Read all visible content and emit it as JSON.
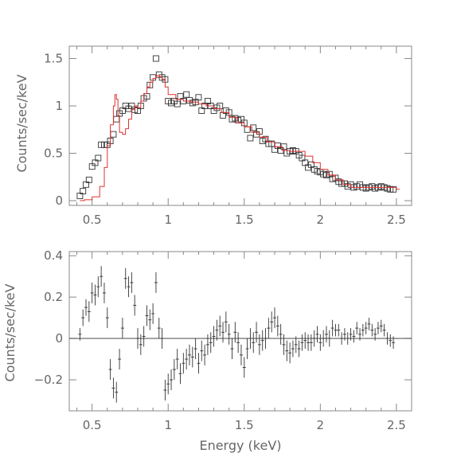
{
  "chart_data": [
    {
      "type": "scatter",
      "panel": "top",
      "xlabel": "",
      "ylabel": "Counts/sec/keV",
      "xlim": [
        0.35,
        2.6
      ],
      "ylim": [
        -0.05,
        1.63
      ],
      "xticks": [
        0.5,
        1,
        1.5,
        2,
        2.5
      ],
      "xtick_labels": [
        "0.5",
        "1",
        "1.5",
        "2",
        "2.5"
      ],
      "yticks": [
        0,
        0.5,
        1,
        1.5
      ],
      "ytick_labels": [
        "0",
        "0.5",
        "1",
        "1.5"
      ],
      "grid": false,
      "series": [
        {
          "kind": "data-boxes",
          "color": "#333333",
          "x": [
            0.42,
            0.44,
            0.46,
            0.48,
            0.5,
            0.52,
            0.54,
            0.56,
            0.58,
            0.6,
            0.62,
            0.64,
            0.66,
            0.68,
            0.7,
            0.72,
            0.74,
            0.76,
            0.78,
            0.8,
            0.82,
            0.84,
            0.86,
            0.88,
            0.9,
            0.92,
            0.94,
            0.96,
            0.98,
            1.0,
            1.02,
            1.04,
            1.06,
            1.08,
            1.1,
            1.12,
            1.14,
            1.16,
            1.18,
            1.2,
            1.22,
            1.24,
            1.26,
            1.28,
            1.3,
            1.32,
            1.34,
            1.36,
            1.38,
            1.4,
            1.42,
            1.44,
            1.46,
            1.48,
            1.5,
            1.52,
            1.54,
            1.56,
            1.58,
            1.6,
            1.62,
            1.64,
            1.66,
            1.68,
            1.7,
            1.72,
            1.74,
            1.76,
            1.78,
            1.8,
            1.82,
            1.84,
            1.86,
            1.88,
            1.9,
            1.92,
            1.94,
            1.96,
            1.98,
            2.0,
            2.02,
            2.04,
            2.06,
            2.08,
            2.1,
            2.12,
            2.14,
            2.16,
            2.18,
            2.2,
            2.22,
            2.24,
            2.26,
            2.28,
            2.3,
            2.32,
            2.34,
            2.36,
            2.38,
            2.4,
            2.42,
            2.44,
            2.46,
            2.48
          ],
          "y": [
            0.05,
            0.1,
            0.17,
            0.22,
            0.36,
            0.4,
            0.45,
            0.59,
            0.59,
            0.59,
            0.63,
            0.7,
            0.86,
            0.92,
            0.95,
            1.0,
            0.97,
            1.0,
            0.96,
            0.95,
            1.0,
            1.08,
            1.1,
            1.22,
            1.3,
            1.5,
            1.33,
            1.3,
            1.28,
            1.05,
            1.03,
            1.05,
            1.02,
            1.1,
            1.05,
            1.12,
            1.06,
            1.03,
            1.04,
            1.09,
            0.95,
            1.0,
            1.05,
            1.0,
            0.95,
            0.98,
            1.0,
            0.9,
            0.95,
            0.93,
            0.86,
            0.87,
            0.85,
            0.86,
            0.82,
            0.75,
            0.66,
            0.77,
            0.7,
            0.73,
            0.63,
            0.65,
            0.6,
            0.6,
            0.54,
            0.58,
            0.53,
            0.57,
            0.5,
            0.52,
            0.53,
            0.52,
            0.48,
            0.45,
            0.4,
            0.35,
            0.38,
            0.33,
            0.31,
            0.3,
            0.28,
            0.27,
            0.28,
            0.23,
            0.24,
            0.2,
            0.18,
            0.18,
            0.15,
            0.17,
            0.14,
            0.15,
            0.17,
            0.14,
            0.13,
            0.14,
            0.15,
            0.13,
            0.14,
            0.15,
            0.14,
            0.13,
            0.12,
            0.12
          ]
        },
        {
          "kind": "model-step",
          "color": "#e03030",
          "x": [
            0.42,
            0.45,
            0.5,
            0.55,
            0.58,
            0.6,
            0.62,
            0.64,
            0.65,
            0.66,
            0.67,
            0.68,
            0.7,
            0.72,
            0.74,
            0.76,
            0.78,
            0.8,
            0.82,
            0.84,
            0.86,
            0.88,
            0.9,
            0.92,
            0.94,
            0.96,
            0.98,
            1.0,
            1.05,
            1.1,
            1.15,
            1.2,
            1.25,
            1.3,
            1.35,
            1.4,
            1.45,
            1.5,
            1.55,
            1.6,
            1.65,
            1.7,
            1.75,
            1.8,
            1.85,
            1.9,
            1.95,
            2.0,
            2.05,
            2.1,
            2.15,
            2.2,
            2.3,
            2.4,
            2.5
          ],
          "y": [
            0.0,
            0.01,
            0.04,
            0.15,
            0.35,
            0.58,
            0.8,
            1.0,
            1.12,
            1.07,
            0.9,
            0.72,
            0.7,
            0.76,
            0.86,
            0.96,
            1.0,
            0.98,
            1.05,
            1.13,
            1.2,
            1.25,
            1.29,
            1.32,
            1.31,
            1.28,
            1.2,
            1.12,
            1.07,
            1.05,
            1.04,
            1.02,
            1.0,
            0.97,
            0.93,
            0.88,
            0.82,
            0.78,
            0.72,
            0.67,
            0.62,
            0.57,
            0.53,
            0.52,
            0.52,
            0.47,
            0.4,
            0.33,
            0.27,
            0.22,
            0.17,
            0.14,
            0.14,
            0.14,
            0.12
          ]
        }
      ]
    },
    {
      "type": "scatter",
      "panel": "bottom",
      "xlabel": "Energy (keV)",
      "ylabel": "Counts/sec/keV",
      "xlim": [
        0.35,
        2.6
      ],
      "ylim": [
        -0.35,
        0.42
      ],
      "xticks": [
        0.5,
        1,
        1.5,
        2,
        2.5
      ],
      "xtick_labels": [
        "0.5",
        "1",
        "1.5",
        "2",
        "2.5"
      ],
      "yticks": [
        -0.2,
        0,
        0.2,
        0.4
      ],
      "ytick_labels": [
        "−0.2",
        "0",
        "0.2",
        "0.4"
      ],
      "grid": false,
      "reference_line": 0,
      "series": [
        {
          "kind": "residual-errorbars",
          "color": "#333333",
          "x": [
            0.42,
            0.44,
            0.46,
            0.48,
            0.5,
            0.52,
            0.54,
            0.56,
            0.58,
            0.6,
            0.62,
            0.64,
            0.66,
            0.68,
            0.7,
            0.72,
            0.74,
            0.76,
            0.78,
            0.8,
            0.82,
            0.84,
            0.86,
            0.88,
            0.9,
            0.92,
            0.94,
            0.96,
            0.98,
            1.0,
            1.02,
            1.04,
            1.06,
            1.08,
            1.1,
            1.12,
            1.14,
            1.16,
            1.18,
            1.2,
            1.22,
            1.24,
            1.26,
            1.28,
            1.3,
            1.32,
            1.34,
            1.36,
            1.38,
            1.4,
            1.42,
            1.44,
            1.46,
            1.48,
            1.5,
            1.52,
            1.54,
            1.56,
            1.58,
            1.6,
            1.62,
            1.64,
            1.66,
            1.68,
            1.7,
            1.72,
            1.74,
            1.76,
            1.78,
            1.8,
            1.82,
            1.84,
            1.86,
            1.88,
            1.9,
            1.92,
            1.94,
            1.96,
            1.98,
            2.0,
            2.02,
            2.04,
            2.06,
            2.08,
            2.1,
            2.12,
            2.14,
            2.16,
            2.18,
            2.2,
            2.22,
            2.24,
            2.26,
            2.28,
            2.3,
            2.32,
            2.34,
            2.36,
            2.38,
            2.4,
            2.42,
            2.44,
            2.46,
            2.48
          ],
          "y": [
            0.02,
            0.1,
            0.15,
            0.13,
            0.22,
            0.21,
            0.25,
            0.3,
            0.22,
            0.1,
            -0.15,
            -0.24,
            -0.26,
            -0.1,
            0.05,
            0.29,
            0.25,
            0.27,
            0.16,
            0.0,
            -0.03,
            0.01,
            0.11,
            0.09,
            0.12,
            0.27,
            0.05,
            0.0,
            -0.25,
            -0.22,
            -0.2,
            -0.15,
            -0.1,
            -0.17,
            -0.12,
            -0.1,
            -0.08,
            -0.09,
            -0.05,
            -0.12,
            -0.06,
            -0.08,
            -0.03,
            -0.02,
            0.01,
            0.04,
            0.06,
            0.03,
            0.08,
            0.02,
            -0.05,
            0.03,
            -0.02,
            -0.08,
            -0.14,
            -0.05,
            0.0,
            -0.02,
            0.03,
            -0.03,
            -0.01,
            0.0,
            0.05,
            0.08,
            0.1,
            0.06,
            0.02,
            -0.03,
            -0.06,
            -0.07,
            -0.05,
            -0.03,
            -0.05,
            -0.02,
            -0.01,
            -0.02,
            -0.02,
            0.0,
            0.02,
            -0.02,
            0.0,
            0.02,
            0.0,
            0.05,
            0.04,
            0.04,
            0.0,
            0.02,
            0.0,
            0.02,
            0.01,
            0.05,
            0.02,
            0.04,
            0.05,
            0.07,
            0.04,
            0.02,
            0.05,
            0.06,
            0.04,
            0.0,
            -0.01,
            -0.02
          ],
          "err": [
            0.03,
            0.04,
            0.04,
            0.05,
            0.05,
            0.05,
            0.05,
            0.05,
            0.05,
            0.05,
            0.05,
            0.05,
            0.05,
            0.05,
            0.05,
            0.05,
            0.05,
            0.05,
            0.05,
            0.05,
            0.05,
            0.05,
            0.05,
            0.05,
            0.05,
            0.05,
            0.05,
            0.05,
            0.05,
            0.05,
            0.05,
            0.05,
            0.05,
            0.05,
            0.05,
            0.05,
            0.05,
            0.05,
            0.05,
            0.05,
            0.05,
            0.05,
            0.05,
            0.05,
            0.05,
            0.05,
            0.05,
            0.05,
            0.05,
            0.05,
            0.05,
            0.05,
            0.05,
            0.05,
            0.05,
            0.05,
            0.05,
            0.05,
            0.05,
            0.05,
            0.05,
            0.05,
            0.05,
            0.05,
            0.05,
            0.05,
            0.05,
            0.05,
            0.05,
            0.05,
            0.04,
            0.04,
            0.04,
            0.04,
            0.04,
            0.04,
            0.04,
            0.04,
            0.04,
            0.04,
            0.04,
            0.04,
            0.04,
            0.04,
            0.03,
            0.03,
            0.03,
            0.03,
            0.03,
            0.03,
            0.03,
            0.03,
            0.03,
            0.03,
            0.03,
            0.03,
            0.03,
            0.03,
            0.03,
            0.03,
            0.03,
            0.03,
            0.03,
            0.03
          ]
        }
      ]
    }
  ]
}
